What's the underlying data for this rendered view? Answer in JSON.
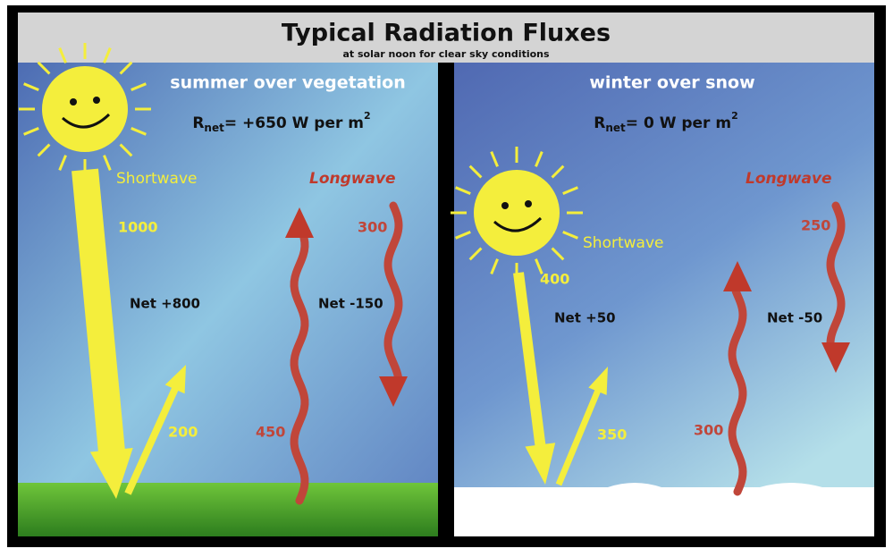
{
  "title": "Typical Radiation Fluxes",
  "subtitle": "at solar noon for clear sky conditions",
  "panels": [
    {
      "heading": "summer  over vegetation",
      "rnet": {
        "symbol": "R",
        "sub": "net",
        "value": "= +650 W per m",
        "sup": "2"
      },
      "shortwave_label": "Shortwave",
      "longwave_label": "Longwave",
      "shortwave_down": "1000",
      "shortwave_up": "200",
      "shortwave_net": "Net +800",
      "longwave_down": "300",
      "longwave_up": "450",
      "longwave_net": "Net -150"
    },
    {
      "heading": "winter over snow",
      "rnet": {
        "symbol": "R",
        "sub": "net",
        "value": "= 0 W per m",
        "sup": "2"
      },
      "shortwave_label": "Shortwave",
      "longwave_label": "Longwave",
      "shortwave_down": "400",
      "shortwave_up": "350",
      "shortwave_net": "Net +50",
      "longwave_down": "250",
      "longwave_up": "300",
      "longwave_net": "Net -50"
    }
  ]
}
